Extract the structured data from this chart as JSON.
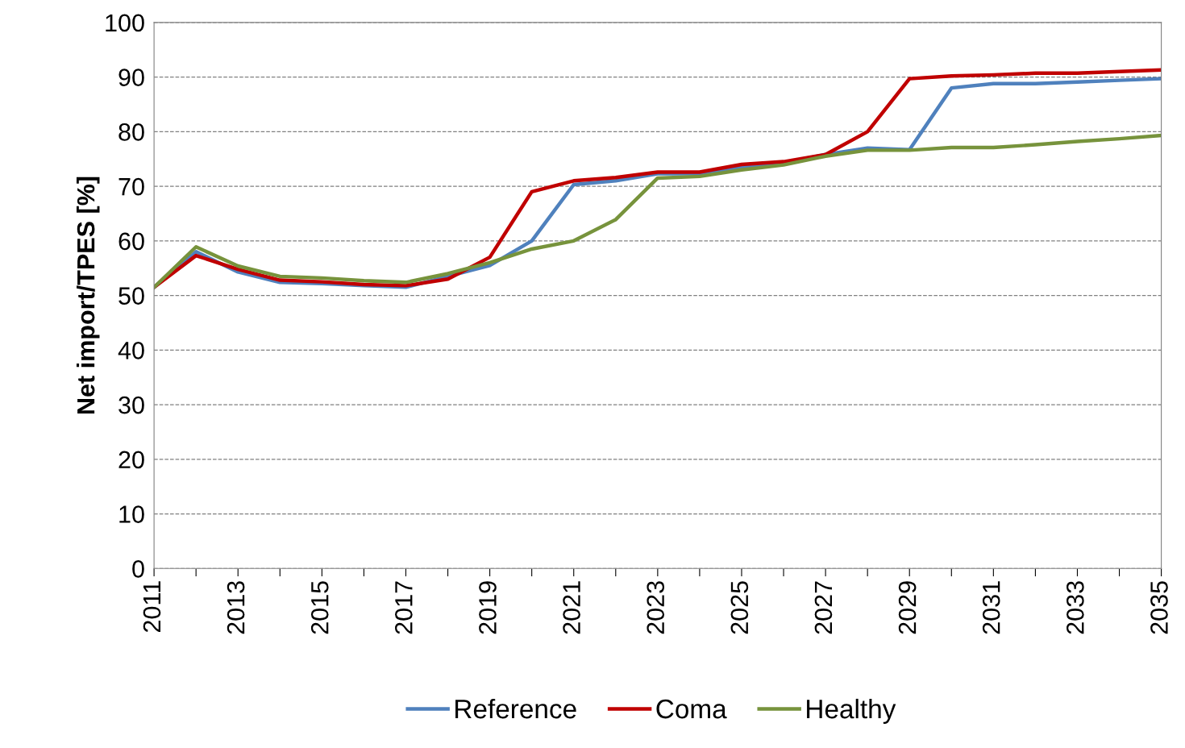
{
  "chart_data": {
    "type": "line",
    "ylabel": "Net import/TPES [%]",
    "x": [
      2011,
      2012,
      2013,
      2014,
      2015,
      2016,
      2017,
      2018,
      2019,
      2020,
      2021,
      2022,
      2023,
      2024,
      2025,
      2026,
      2027,
      2028,
      2029,
      2030,
      2031,
      2032,
      2033,
      2034,
      2035
    ],
    "series": [
      {
        "name": "Reference",
        "color": "#4f81bd",
        "values": [
          51.5,
          58,
          54.3,
          52.4,
          52.2,
          51.8,
          51.5,
          53.5,
          55.5,
          60,
          70.3,
          71,
          72.3,
          72.3,
          73.5,
          74.3,
          75.8,
          77,
          76.7,
          88,
          88.8,
          88.8,
          89.1,
          89.4,
          89.7
        ]
      },
      {
        "name": "Coma",
        "color": "#c00000",
        "values": [
          51.5,
          57.3,
          54.8,
          52.8,
          52.5,
          52,
          51.8,
          53,
          57,
          69,
          71,
          71.6,
          72.6,
          72.6,
          74,
          74.5,
          75.8,
          80,
          89.7,
          90.2,
          90.4,
          90.7,
          90.7,
          91,
          91.3
        ]
      },
      {
        "name": "Healthy",
        "color": "#77933c",
        "values": [
          51.5,
          58.9,
          55.4,
          53.5,
          53.2,
          52.7,
          52.4,
          54,
          56,
          58.5,
          60,
          63.9,
          71.5,
          71.8,
          73,
          73.9,
          75.5,
          76.6,
          76.6,
          77.1,
          77.1,
          77.6,
          78.2,
          78.7,
          79.3
        ]
      }
    ],
    "xlim": [
      2011,
      2035
    ],
    "xticks": [
      2011,
      {
        "value": 2012,
        "label": null
      },
      2013,
      {
        "value": 2014,
        "label": null
      },
      2015,
      {
        "value": 2016,
        "label": null
      },
      2017,
      {
        "value": 2018,
        "label": null
      },
      2019,
      {
        "value": 2020,
        "label": null
      },
      2021,
      {
        "value": 2022,
        "label": null
      },
      2023,
      {
        "value": 2024,
        "label": null
      },
      2025,
      {
        "value": 2026,
        "label": null
      },
      2027,
      {
        "value": 2028,
        "label": null
      },
      2029,
      {
        "value": 2030,
        "label": null
      },
      2031,
      {
        "value": 2032,
        "label": null
      },
      2033,
      {
        "value": 2034,
        "label": null
      },
      2035
    ],
    "ylim": [
      0,
      100
    ],
    "yticks": [
      0,
      10,
      20,
      30,
      40,
      50,
      60,
      70,
      80,
      90,
      100
    ],
    "grid": "y",
    "legend": "bottom",
    "marker": "none",
    "line_style": "solid"
  }
}
